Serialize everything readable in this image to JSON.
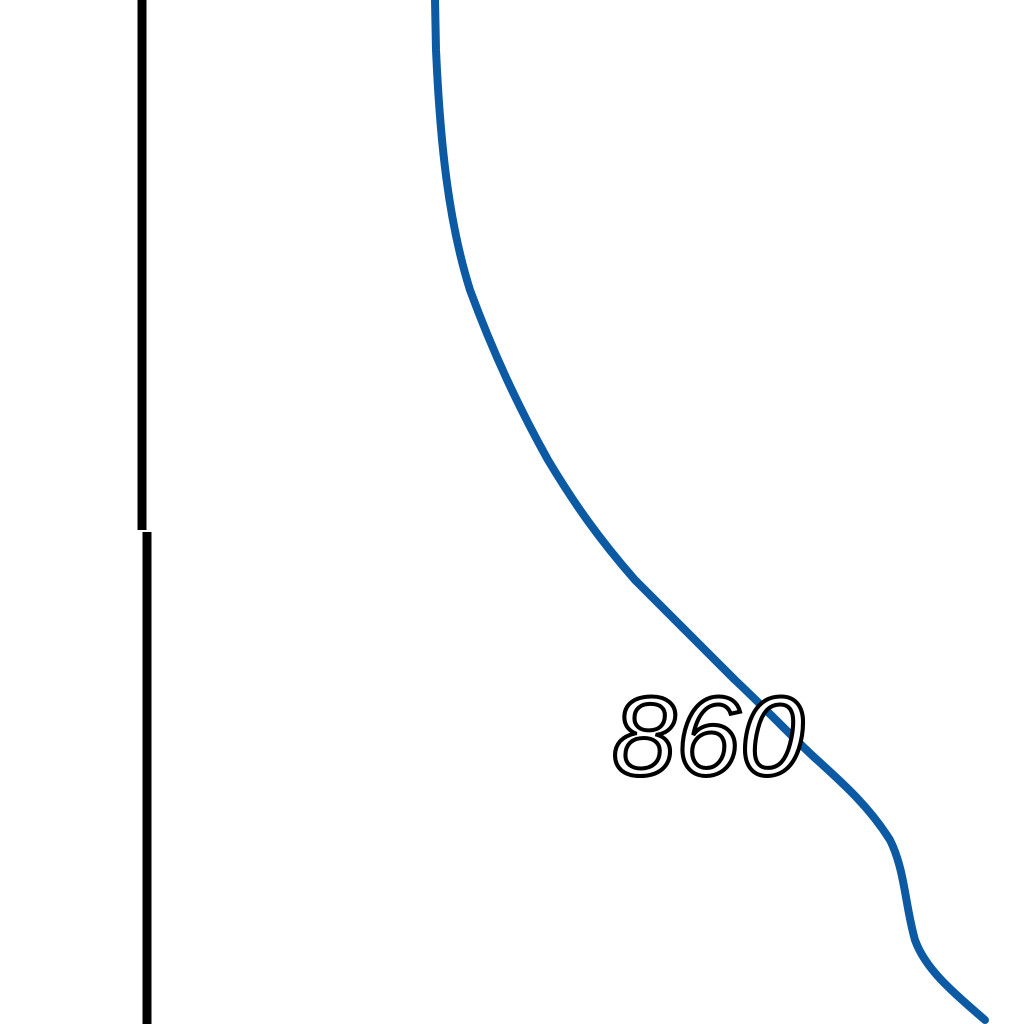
{
  "map": {
    "contour_color": "#0b5aa3",
    "boundary_color": "#000000",
    "background_color": "#ffffff",
    "contour_label": "860",
    "features": [
      {
        "name": "contour-line",
        "kind": "elevation contour",
        "value": "860"
      },
      {
        "name": "boundary-line",
        "kind": "black vertical line"
      }
    ]
  }
}
